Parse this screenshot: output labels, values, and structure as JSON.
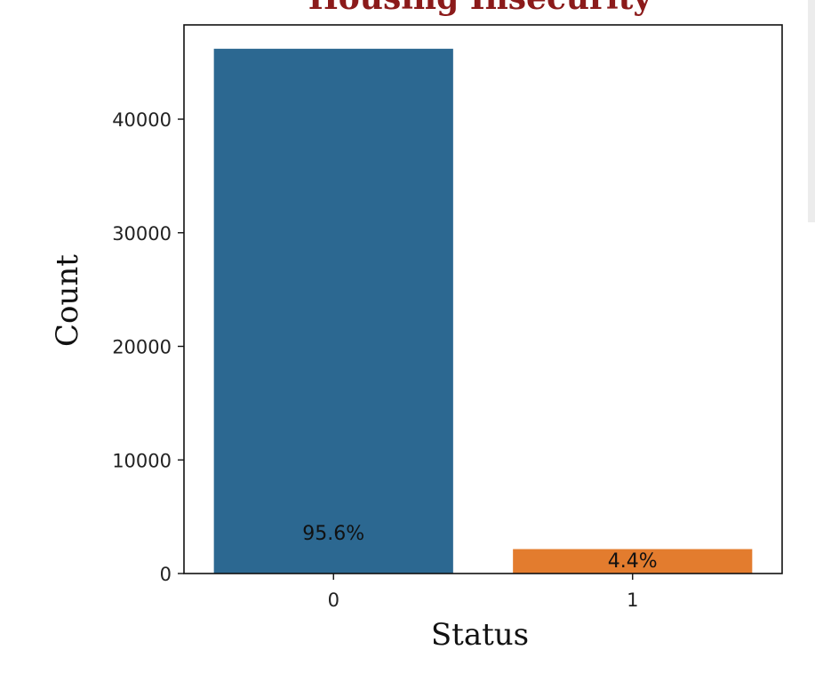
{
  "chart_data": {
    "type": "bar",
    "title": "Housing Insecurity",
    "xlabel": "Status",
    "ylabel": "Count",
    "categories": [
      "0",
      "1"
    ],
    "values": [
      46200,
      2150
    ],
    "data_labels": [
      "95.6%",
      "4.4%"
    ],
    "colors": [
      "#2c6891",
      "#e37c2e"
    ],
    "title_color": "#8b1a1a",
    "ylim": [
      0,
      48300
    ],
    "yticks": [
      0,
      10000,
      20000,
      30000,
      40000
    ],
    "ytick_labels": [
      "0",
      "10000",
      "20000",
      "30000",
      "40000"
    ],
    "grid": false,
    "legend": "none"
  }
}
